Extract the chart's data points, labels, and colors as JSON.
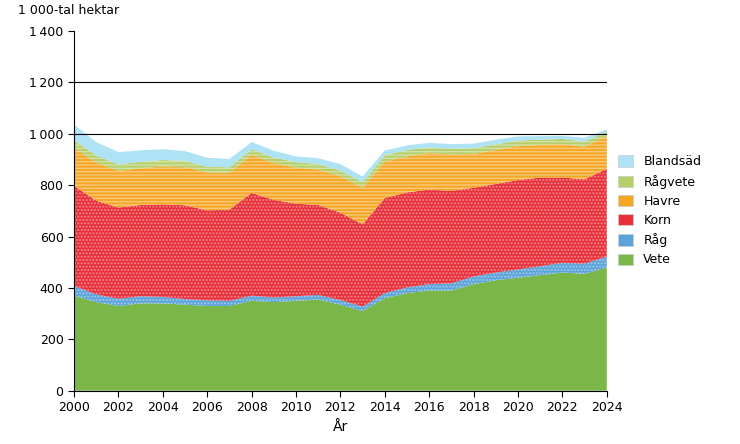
{
  "years": [
    2000,
    2001,
    2002,
    2003,
    2004,
    2005,
    2006,
    2007,
    2008,
    2009,
    2010,
    2011,
    2012,
    2013,
    2014,
    2015,
    2016,
    2017,
    2018,
    2019,
    2020,
    2021,
    2022,
    2023,
    2024
  ],
  "vete": [
    370,
    345,
    330,
    340,
    340,
    335,
    330,
    330,
    350,
    345,
    350,
    355,
    335,
    310,
    360,
    380,
    390,
    390,
    415,
    430,
    440,
    450,
    460,
    455,
    480
  ],
  "rag": [
    38,
    30,
    28,
    28,
    25,
    22,
    22,
    20,
    20,
    18,
    18,
    18,
    18,
    18,
    20,
    22,
    25,
    28,
    30,
    30,
    32,
    35,
    38,
    40,
    42
  ],
  "korn": [
    390,
    365,
    355,
    355,
    360,
    365,
    350,
    355,
    400,
    380,
    360,
    350,
    340,
    320,
    370,
    370,
    368,
    360,
    345,
    345,
    348,
    345,
    332,
    328,
    342
  ],
  "havre": [
    148,
    148,
    143,
    143,
    148,
    148,
    148,
    143,
    148,
    143,
    140,
    138,
    142,
    142,
    142,
    140,
    142,
    142,
    132,
    132,
    132,
    127,
    130,
    127,
    127
  ],
  "ragvete": [
    30,
    28,
    25,
    25,
    25,
    25,
    22,
    22,
    22,
    22,
    22,
    22,
    22,
    22,
    25,
    25,
    22,
    22,
    22,
    22,
    22,
    20,
    20,
    20,
    18
  ],
  "blandsad": [
    60,
    52,
    48,
    45,
    42,
    38,
    35,
    32,
    28,
    26,
    22,
    22,
    25,
    22,
    18,
    18,
    18,
    18,
    18,
    18,
    16,
    14,
    12,
    15,
    8
  ],
  "colors": {
    "vete": "#7ab648",
    "rag": "#5ba3d9",
    "korn": "#e8303a",
    "havre": "#f5a623",
    "ragvete": "#b5cf6b",
    "blandsad": "#aee3f5"
  },
  "labels": {
    "vete": "Vete",
    "rag": "Råg",
    "korn": "Korn",
    "havre": "Havre",
    "ragvete": "Rågvete",
    "blandsad": "Blandsäd"
  },
  "ylabel": "1 000-tal hektar",
  "xlabel": "År",
  "ylim": [
    0,
    1400
  ],
  "yticks": [
    0,
    200,
    400,
    600,
    800,
    1000,
    1200,
    1400
  ],
  "hlines": [
    1000,
    1200
  ],
  "figsize": [
    7.4,
    4.44
  ],
  "dpi": 100
}
